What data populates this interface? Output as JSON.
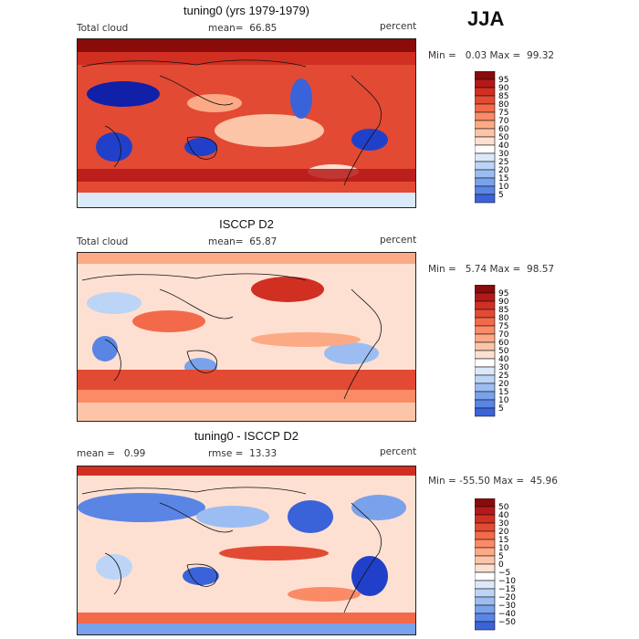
{
  "season": "JJA",
  "colors": {
    "pos_scale": [
      "#FFFFFF",
      "#FEE0D2",
      "#FCC5A8",
      "#FCAA86",
      "#FB8A67",
      "#F36A4B",
      "#E34A33",
      "#D02F22",
      "#B51818",
      "#8B0A0A"
    ],
    "neg_scale": [
      "#DCE9FA",
      "#BCD4F6",
      "#9BBDF1",
      "#7AA2EB",
      "#5A85E5",
      "#3A63DA",
      "#2140C9",
      "#1020A8",
      "#080C78"
    ]
  },
  "panels": [
    {
      "title": "tuning0 (yrs 1979-1979)",
      "left_label": "Total cloud",
      "mid_label": "mean=  66.85",
      "units": "percent",
      "minmax": "Min =   0.03 Max =  99.32",
      "field_type": "model",
      "colorbar_labels": [
        "95",
        "90",
        "85",
        "80",
        "75",
        "70",
        "60",
        "50",
        "40",
        "30",
        "25",
        "20",
        "15",
        "10",
        "5"
      ]
    },
    {
      "title": "ISCCP D2",
      "left_label": "Total cloud",
      "mid_label": "mean=  65.87",
      "units": "percent",
      "minmax": "Min =   5.74 Max =  98.57",
      "field_type": "obs",
      "colorbar_labels": [
        "95",
        "90",
        "85",
        "80",
        "75",
        "70",
        "60",
        "50",
        "40",
        "30",
        "25",
        "20",
        "15",
        "10",
        "5"
      ]
    },
    {
      "title": "tuning0 - ISCCP D2",
      "left_label": "mean =   0.99",
      "mid_label": "rmse =  13.33",
      "units": "percent",
      "minmax": "Min = -55.50 Max =  45.96",
      "field_type": "diff",
      "colorbar_labels": [
        "50",
        "40",
        "30",
        "20",
        "15",
        "10",
        "5",
        "0",
        "−5",
        "−10",
        "−15",
        "−20",
        "−30",
        "−40",
        "−50"
      ]
    }
  ]
}
